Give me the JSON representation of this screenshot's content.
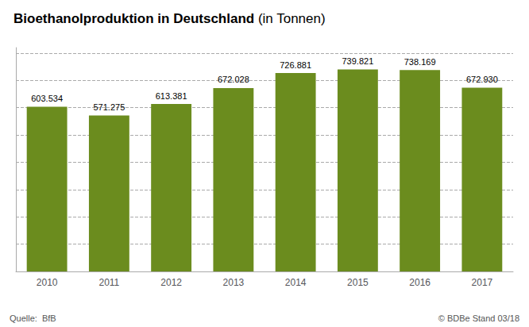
{
  "chart_data": {
    "type": "bar",
    "title": "Bioethanolproduktion in Deutschland",
    "subtitle": " (in Tonnen)",
    "categories": [
      "2010",
      "2011",
      "2012",
      "2013",
      "2014",
      "2015",
      "2016",
      "2017"
    ],
    "values": [
      603534,
      571275,
      613381,
      672028,
      726881,
      739821,
      738169,
      672930
    ],
    "value_labels": [
      "603.534",
      "571.275",
      "613.381",
      "672.028",
      "726.881",
      "739.821",
      "738.169",
      "672.930"
    ],
    "data_labels": true,
    "color": "#6b8c1e",
    "ylim": [
      0,
      820000
    ],
    "yticks": [
      0,
      100000,
      200000,
      300000,
      400000,
      500000,
      600000,
      700000,
      800000
    ],
    "grid": true,
    "tick_labels": "x",
    "annotations": [
      "Quelle:  BfB",
      "© BDBe Stand 03/18"
    ]
  }
}
